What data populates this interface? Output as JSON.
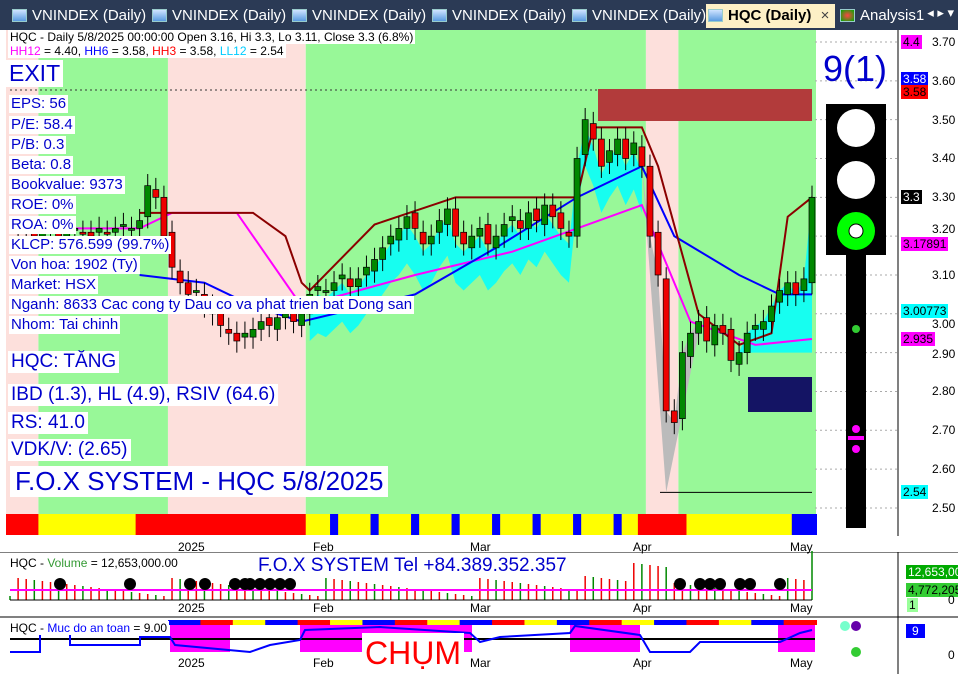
{
  "tabs": [
    {
      "label": "VNINDEX (Daily)"
    },
    {
      "label": "VNINDEX (Daily)"
    },
    {
      "label": "VNINDEX (Daily)"
    },
    {
      "label": "VNINDEX (Daily)"
    },
    {
      "label": "VNINDEX (Daily)"
    },
    {
      "label": "HQC (Daily)",
      "active": true
    },
    {
      "label": "Analysis1"
    }
  ],
  "header": {
    "title_line": "HQC - Daily 5/8/2025 00:00:00 Open 3.16, Hi 3.3, Lo 3.11, Close 3.3 (6.8%)",
    "hh12": "HH12",
    "hh12_val": " = 4.40, ",
    "hh6": "HH6",
    "hh6_val": " = 3.58, ",
    "hh3": "HH3",
    "hh3_val": " = 3.58, ",
    "ll12": "LL12",
    "ll12_val": " = 2.54"
  },
  "signal": "EXIT",
  "fundamentals": [
    "EPS: 56",
    "P/E: 58.4",
    "P/B: 0.3",
    "Beta: 0.8",
    "Bookvalue: 9373",
    "ROE: 0%",
    "ROA: 0%",
    "KLCP: 576.599 (99.7%)",
    "Von hoa: 1902 (Ty)",
    "Market: HSX",
    "Nganh: 8633 Cac cong ty Dau co va phat trien bat Dong san",
    "Nhom: Tai chinh"
  ],
  "status": {
    "trend": "HQC: TĂNG",
    "indicators": "IBD (1.3), HL (4.9), RSIV (64.6)",
    "rs": "RS: 41.0",
    "vdk": "VDK/V:  (2.65)",
    "system": "F.O.X SYSTEM - HQC 5/8/2025"
  },
  "score": "9(1)",
  "traffic_light": {
    "red": "off",
    "yellow": "off",
    "green": "on"
  },
  "price_axis": {
    "ticks": [
      "3.70",
      "3.60",
      "3.50",
      "3.40",
      "3.30",
      "3.20",
      "3.10",
      "3.00",
      "2.90",
      "2.80",
      "2.70",
      "2.60",
      "2.50"
    ],
    "tags": [
      {
        "text": "4.4",
        "bg": "#ff00ff",
        "fg": "#000",
        "price": 3.7
      },
      {
        "text": "3.58",
        "bg": "#0000ff",
        "fg": "#fff",
        "price": 3.605
      },
      {
        "text": "3.58",
        "bg": "#ff0000",
        "fg": "#000",
        "price": 3.572
      },
      {
        "text": "3.3",
        "bg": "#000000",
        "fg": "#fff",
        "price": 3.3
      },
      {
        "text": "3.17891",
        "bg": "#ff00ff",
        "fg": "#000",
        "price": 3.17891
      },
      {
        "text": "3.00773",
        "bg": "#00ffff",
        "fg": "#000",
        "price": 3.00773
      },
      {
        "text": "2.935",
        "bg": "#ff00ff",
        "fg": "#000",
        "price": 2.935
      },
      {
        "text": "2.54",
        "bg": "#00ffff",
        "fg": "#000",
        "price": 2.54
      }
    ]
  },
  "date_labels": [
    "2025",
    "Feb",
    "Mar",
    "Apr",
    "May"
  ],
  "chart_data": {
    "type": "candlestick",
    "ylim": [
      2.5,
      3.7
    ],
    "close": [
      3.22,
      3.21,
      3.22,
      3.2,
      3.21,
      3.22,
      3.2,
      3.21,
      3.22,
      3.21,
      3.2,
      3.22,
      3.21,
      3.22,
      3.23,
      3.22,
      3.24,
      3.33,
      3.3,
      3.2,
      3.12,
      3.08,
      3.05,
      3.06,
      3.02,
      3.0,
      2.97,
      2.95,
      2.93,
      2.95,
      2.96,
      2.98,
      2.97,
      2.99,
      3.0,
      2.98,
      3.0,
      3.05,
      3.07,
      3.06,
      3.08,
      3.1,
      3.07,
      3.09,
      3.12,
      3.14,
      3.17,
      3.2,
      3.22,
      3.25,
      3.22,
      3.18,
      3.2,
      3.24,
      3.27,
      3.2,
      3.18,
      3.2,
      3.22,
      3.18,
      3.2,
      3.23,
      3.25,
      3.22,
      3.26,
      3.24,
      3.28,
      3.25,
      3.22,
      3.2,
      3.4,
      3.5,
      3.45,
      3.38,
      3.42,
      3.45,
      3.4,
      3.44,
      3.38,
      3.2,
      3.1,
      2.75,
      2.72,
      2.9,
      2.95,
      2.98,
      2.93,
      2.97,
      2.95,
      2.88,
      2.9,
      2.95,
      2.97,
      2.98,
      3.02,
      3.06,
      3.08,
      3.05,
      3.09,
      3.3
    ],
    "regimes": [
      {
        "from": 0,
        "to": 3,
        "state": "down"
      },
      {
        "from": 4,
        "to": 19,
        "state": "up"
      },
      {
        "from": 20,
        "to": 36,
        "state": "down"
      },
      {
        "from": 37,
        "to": 78,
        "state": "up"
      },
      {
        "from": 79,
        "to": 82,
        "state": "down"
      },
      {
        "from": 83,
        "to": 99,
        "state": "up"
      }
    ],
    "stop_line": [
      [
        16,
        3.26
      ],
      [
        20,
        3.26
      ],
      [
        30,
        3.26
      ],
      [
        34,
        3.2
      ],
      [
        36,
        3.08
      ],
      [
        37,
        3.06
      ],
      [
        45,
        3.23
      ],
      [
        55,
        3.3
      ],
      [
        70,
        3.3
      ],
      [
        72,
        3.48
      ],
      [
        78,
        3.48
      ],
      [
        80,
        3.38
      ],
      [
        85,
        3.0
      ],
      [
        90,
        2.92
      ],
      [
        94,
        2.95
      ],
      [
        96,
        3.25
      ],
      [
        99,
        3.3
      ]
    ],
    "blue_line": [
      [
        16,
        3.1
      ],
      [
        24,
        3.08
      ],
      [
        30,
        3.02
      ],
      [
        36,
        2.98
      ],
      [
        50,
        3.05
      ],
      [
        60,
        3.17
      ],
      [
        70,
        3.3
      ],
      [
        78,
        3.38
      ],
      [
        82,
        3.2
      ],
      [
        90,
        3.1
      ],
      [
        95,
        3.05
      ],
      [
        99,
        3.05
      ]
    ],
    "magenta_line": [
      [
        0,
        3.22
      ],
      [
        16,
        3.22
      ],
      [
        20,
        3.26
      ],
      [
        28,
        3.26
      ],
      [
        36,
        3.02
      ],
      [
        50,
        3.1
      ],
      [
        62,
        3.16
      ],
      [
        70,
        3.22
      ],
      [
        78,
        3.28
      ],
      [
        84,
        2.98
      ],
      [
        92,
        2.92
      ],
      [
        99,
        2.935
      ]
    ]
  },
  "volume_panel": {
    "title": "HQC - ",
    "series": "Volume",
    "value": " = 12,653,000.00",
    "banner": "F.O.X SYSTEM Tel +84.389.352.357",
    "tags": [
      "12,653,00",
      "4,772,205",
      "1",
      "0"
    ]
  },
  "safety_panel": {
    "title": "HQC - ",
    "series": "Muc do an toan",
    "value": " = 9.00",
    "banner": "CHỤM",
    "tags": [
      "9",
      "0"
    ],
    "level": 9
  }
}
